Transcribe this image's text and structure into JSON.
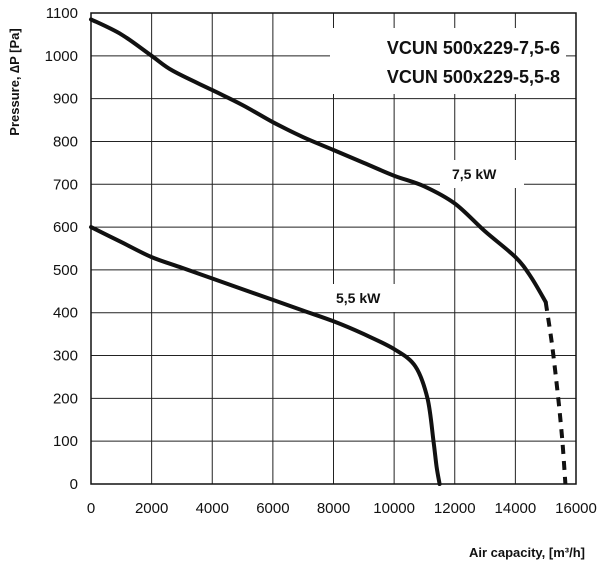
{
  "chart_data": {
    "type": "line",
    "title_lines": [
      "VCUN 500x229-7,5-6",
      "VCUN 500x229-5,5-8"
    ],
    "xlabel": "Air capacity, [m³/h]",
    "ylabel": "Pressure, ∆P [Pa]",
    "xlim": [
      0,
      16000
    ],
    "ylim": [
      0,
      1100
    ],
    "xticks": [
      0,
      2000,
      4000,
      6000,
      8000,
      10000,
      12000,
      14000,
      16000
    ],
    "yticks": [
      0,
      100,
      200,
      300,
      400,
      500,
      600,
      700,
      800,
      900,
      1000,
      1100
    ],
    "grid": true,
    "series": [
      {
        "name": "7,5 kW",
        "color": "#111111",
        "x": [
          0,
          1000,
          2000,
          2700,
          4000,
          5000,
          6000,
          7000,
          8000,
          9000,
          10000,
          11000,
          12000,
          13000,
          14000,
          14500,
          15000
        ],
        "y": [
          1085,
          1050,
          1000,
          965,
          920,
          885,
          845,
          810,
          780,
          750,
          720,
          695,
          655,
          590,
          530,
          485,
          425
        ],
        "dashed_extension": {
          "x": [
            15000,
            15200,
            15400,
            15550,
            15650
          ],
          "y": [
            425,
            330,
            210,
            100,
            0
          ]
        }
      },
      {
        "name": "5,5 kW",
        "color": "#111111",
        "x": [
          0,
          1000,
          2000,
          3000,
          4000,
          5000,
          6000,
          7000,
          8000,
          9000,
          10000,
          10700,
          11100,
          11300,
          11400,
          11500
        ],
        "y": [
          600,
          565,
          530,
          505,
          480,
          455,
          430,
          405,
          380,
          350,
          315,
          275,
          200,
          100,
          40,
          0
        ]
      }
    ]
  }
}
